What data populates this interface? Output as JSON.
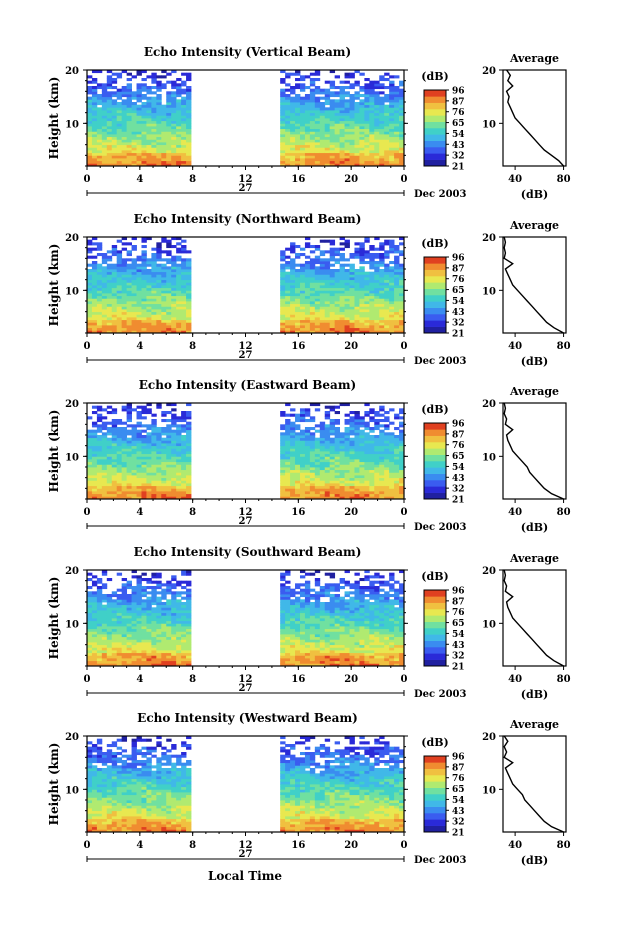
{
  "colors": {
    "colorbar": [
      "#2020a0",
      "#2a2ad8",
      "#3a5cf0",
      "#3a8cf0",
      "#40b8e8",
      "#40d0c8",
      "#70e0a0",
      "#b0ea70",
      "#e8e850",
      "#f0c040",
      "#f08c30",
      "#e04020"
    ],
    "line": "#000000"
  },
  "shared": {
    "xlabel": "Local Time",
    "date_label": "27",
    "month_label": "Dec 2003",
    "ylabel": "Height (km)",
    "avg_title": "Average",
    "avg_xlabel": "(dB)",
    "cbar_unit": "(dB)"
  },
  "chart_data": [
    {
      "type": "heatmap",
      "title": "Echo Intensity (Vertical Beam)",
      "x_ticks": [
        "0",
        "4",
        "8",
        "12",
        "16",
        "20",
        "0"
      ],
      "y_ticks": [
        "20",
        "10"
      ],
      "xlim": [
        0,
        24
      ],
      "ylim": [
        2,
        20
      ],
      "data_gap_hours": [
        8,
        14.5
      ],
      "colorbar_ticks": [
        "96",
        "87",
        "76",
        "65",
        "54",
        "43",
        "32",
        "21"
      ],
      "colorbar_range": [
        21,
        96
      ],
      "average_profile": {
        "x_ticks": [
          "40",
          "80"
        ],
        "y_ticks": [
          "20",
          "10"
        ],
        "xlim": [
          30,
          82
        ],
        "ylim": [
          2,
          20
        ],
        "height_km": [
          2,
          3,
          4,
          5,
          6,
          7,
          8,
          9,
          10,
          11,
          12,
          13,
          14,
          15,
          16,
          17,
          18,
          19,
          20
        ],
        "value_db": [
          80,
          76,
          70,
          64,
          60,
          56,
          52,
          48,
          44,
          40,
          38,
          36,
          34,
          35,
          33,
          38,
          34,
          36,
          33
        ]
      }
    },
    {
      "type": "heatmap",
      "title": "Echo Intensity (Northward Beam)",
      "x_ticks": [
        "0",
        "4",
        "8",
        "12",
        "16",
        "20",
        "0"
      ],
      "y_ticks": [
        "20",
        "10"
      ],
      "xlim": [
        0,
        24
      ],
      "ylim": [
        2,
        20
      ],
      "data_gap_hours": [
        8,
        14.5
      ],
      "colorbar_ticks": [
        "96",
        "87",
        "76",
        "65",
        "54",
        "43",
        "32",
        "21"
      ],
      "colorbar_range": [
        21,
        96
      ],
      "average_profile": {
        "x_ticks": [
          "40",
          "80"
        ],
        "y_ticks": [
          "20",
          "10"
        ],
        "xlim": [
          30,
          82
        ],
        "ylim": [
          2,
          20
        ],
        "height_km": [
          2,
          3,
          4,
          5,
          6,
          7,
          8,
          9,
          10,
          11,
          12,
          13,
          14,
          15,
          16,
          17,
          18,
          19,
          20
        ],
        "value_db": [
          80,
          72,
          66,
          62,
          58,
          54,
          50,
          46,
          42,
          38,
          36,
          34,
          32,
          38,
          31,
          32,
          31,
          32,
          31
        ]
      }
    },
    {
      "type": "heatmap",
      "title": "Echo Intensity (Eastward Beam)",
      "x_ticks": [
        "0",
        "4",
        "8",
        "12",
        "16",
        "20",
        "0"
      ],
      "y_ticks": [
        "20",
        "10"
      ],
      "xlim": [
        0,
        24
      ],
      "ylim": [
        2,
        20
      ],
      "data_gap_hours": [
        8,
        14.5
      ],
      "colorbar_ticks": [
        "96",
        "87",
        "76",
        "65",
        "54",
        "43",
        "32",
        "21"
      ],
      "colorbar_range": [
        21,
        96
      ],
      "average_profile": {
        "x_ticks": [
          "40",
          "80"
        ],
        "y_ticks": [
          "20",
          "10"
        ],
        "xlim": [
          30,
          82
        ],
        "ylim": [
          2,
          20
        ],
        "height_km": [
          2,
          3,
          4,
          5,
          6,
          7,
          8,
          9,
          10,
          11,
          12,
          13,
          14,
          15,
          16,
          17,
          18,
          19,
          20
        ],
        "value_db": [
          80,
          70,
          64,
          60,
          56,
          52,
          50,
          46,
          42,
          38,
          36,
          34,
          33,
          38,
          32,
          33,
          31,
          32,
          31
        ]
      }
    },
    {
      "type": "heatmap",
      "title": "Echo Intensity (Southward Beam)",
      "x_ticks": [
        "0",
        "4",
        "8",
        "12",
        "16",
        "20",
        "0"
      ],
      "y_ticks": [
        "20",
        "10"
      ],
      "xlim": [
        0,
        24
      ],
      "ylim": [
        2,
        20
      ],
      "data_gap_hours": [
        8,
        14.5
      ],
      "colorbar_ticks": [
        "96",
        "87",
        "76",
        "65",
        "54",
        "43",
        "32",
        "21"
      ],
      "colorbar_range": [
        21,
        96
      ],
      "average_profile": {
        "x_ticks": [
          "40",
          "80"
        ],
        "y_ticks": [
          "20",
          "10"
        ],
        "xlim": [
          30,
          82
        ],
        "ylim": [
          2,
          20
        ],
        "height_km": [
          2,
          3,
          4,
          5,
          6,
          7,
          8,
          9,
          10,
          11,
          12,
          13,
          14,
          15,
          16,
          17,
          18,
          19,
          20
        ],
        "value_db": [
          80,
          72,
          66,
          62,
          58,
          54,
          50,
          46,
          42,
          38,
          36,
          34,
          33,
          38,
          32,
          33,
          31,
          32,
          31
        ]
      }
    },
    {
      "type": "heatmap",
      "title": "Echo Intensity (Westward Beam)",
      "x_ticks": [
        "0",
        "4",
        "8",
        "12",
        "16",
        "20",
        "0"
      ],
      "y_ticks": [
        "20",
        "10"
      ],
      "xlim": [
        0,
        24
      ],
      "ylim": [
        2,
        20
      ],
      "data_gap_hours": [
        8,
        14.5
      ],
      "colorbar_ticks": [
        "96",
        "87",
        "76",
        "65",
        "54",
        "43",
        "32",
        "21"
      ],
      "colorbar_range": [
        21,
        96
      ],
      "average_profile": {
        "x_ticks": [
          "40",
          "80"
        ],
        "y_ticks": [
          "20",
          "10"
        ],
        "xlim": [
          30,
          82
        ],
        "ylim": [
          2,
          20
        ],
        "height_km": [
          2,
          3,
          4,
          5,
          6,
          7,
          8,
          9,
          10,
          11,
          12,
          13,
          14,
          15,
          16,
          17,
          18,
          19,
          20
        ],
        "value_db": [
          80,
          70,
          64,
          60,
          56,
          52,
          48,
          46,
          42,
          38,
          36,
          34,
          32,
          38,
          31,
          33,
          31,
          34,
          31
        ]
      }
    }
  ]
}
